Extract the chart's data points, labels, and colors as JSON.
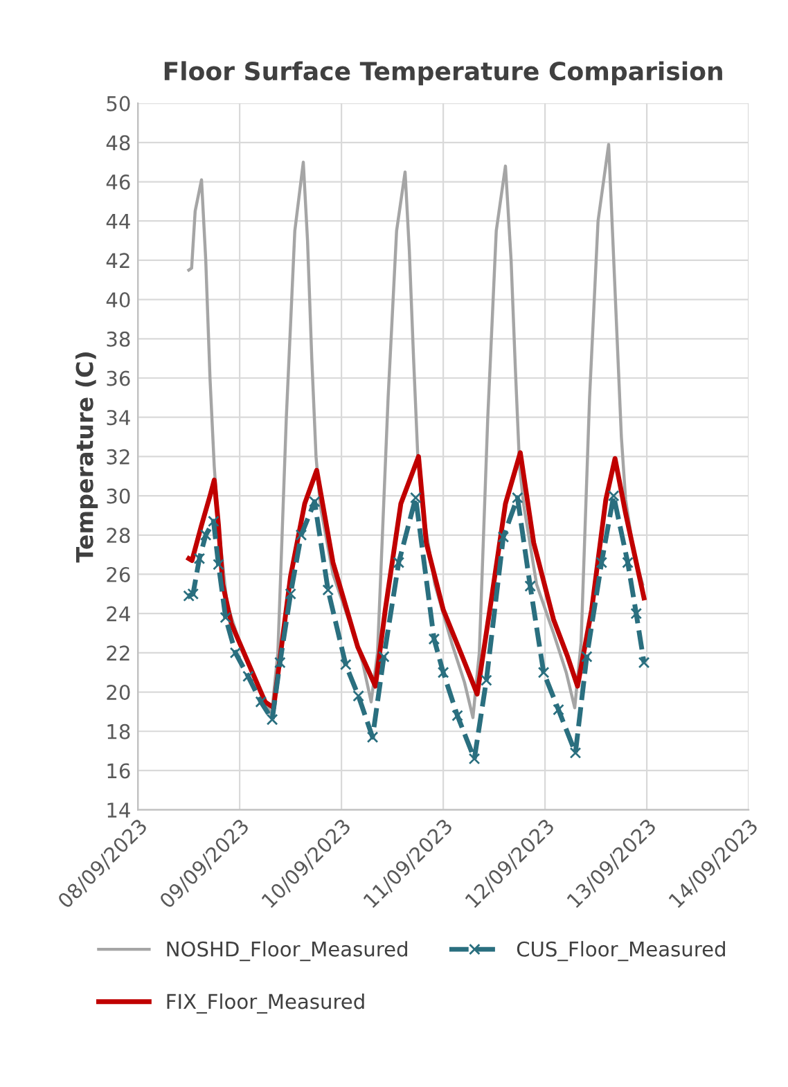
{
  "chart_data": {
    "type": "line",
    "title": "Floor Surface Temperature Comparision",
    "ylabel": "Temperature (C)",
    "xlim": [
      "2023-09-08",
      "2023-09-14"
    ],
    "xticks": [
      {
        "value": "2023-09-08",
        "label": "08/09/2023"
      },
      {
        "value": "2023-09-09",
        "label": "09/09/2023"
      },
      {
        "value": "2023-09-10",
        "label": "10/09/2023"
      },
      {
        "value": "2023-09-11",
        "label": "11/09/2023"
      },
      {
        "value": "2023-09-12",
        "label": "12/09/2023"
      },
      {
        "value": "2023-09-13",
        "label": "13/09/2023"
      },
      {
        "value": "2023-09-14",
        "label": "14/09/2023"
      }
    ],
    "ylim": [
      14,
      50
    ],
    "yticks": [
      14,
      16,
      18,
      20,
      22,
      24,
      26,
      28,
      30,
      32,
      34,
      36,
      38,
      40,
      42,
      44,
      46,
      48,
      50
    ],
    "grid": true,
    "legend": "bottom",
    "series": [
      {
        "name": "NOSHD_Floor_Measured",
        "color": "#a5a5a5",
        "marker": "none",
        "line_style": "solid",
        "x": [
          "2023-09-08T12:00",
          "2023-09-08T12:40",
          "2023-09-08T13:30",
          "2023-09-08T15:00",
          "2023-09-08T16:00",
          "2023-09-08T17:00",
          "2023-09-08T18:00",
          "2023-09-08T19:00",
          "2023-09-08T21:00",
          "2023-09-09T00:00",
          "2023-09-09T04:00",
          "2023-09-09T07:30",
          "2023-09-09T09:00",
          "2023-09-09T11:00",
          "2023-09-09T13:00",
          "2023-09-09T15:00",
          "2023-09-09T16:00",
          "2023-09-09T17:00",
          "2023-09-09T18:00",
          "2023-09-09T19:00",
          "2023-09-09T22:00",
          "2023-09-10T02:00",
          "2023-09-10T05:00",
          "2023-09-10T07:00",
          "2023-09-10T08:30",
          "2023-09-10T11:00",
          "2023-09-10T13:00",
          "2023-09-10T15:00",
          "2023-09-10T16:00",
          "2023-09-10T17:00",
          "2023-09-10T18:00",
          "2023-09-10T19:00",
          "2023-09-10T22:00",
          "2023-09-11T02:00",
          "2023-09-11T05:00",
          "2023-09-11T07:00",
          "2023-09-11T08:30",
          "2023-09-11T10:30",
          "2023-09-11T12:30",
          "2023-09-11T14:40",
          "2023-09-11T16:00",
          "2023-09-11T17:00",
          "2023-09-11T18:00",
          "2023-09-11T19:00",
          "2023-09-11T22:00",
          "2023-09-12T02:00",
          "2023-09-12T05:00",
          "2023-09-12T07:00",
          "2023-09-12T08:30",
          "2023-09-12T10:30",
          "2023-09-12T12:30",
          "2023-09-12T15:00",
          "2023-09-12T16:00",
          "2023-09-12T17:00",
          "2023-09-12T18:00",
          "2023-09-12T19:00",
          "2023-09-12T21:00",
          "2023-09-12T23:00"
        ],
        "values": [
          41.5,
          41.6,
          44.5,
          46.1,
          42,
          36,
          31.5,
          28.5,
          24.5,
          22.5,
          20.5,
          18.8,
          22,
          34,
          43.5,
          47.0,
          43,
          37,
          32,
          29.5,
          26,
          23.5,
          21.5,
          19.5,
          22,
          35,
          43.5,
          46.5,
          42.5,
          37,
          32,
          29.5,
          25.5,
          22.5,
          20.5,
          18.7,
          22,
          34,
          43.5,
          46.8,
          42,
          36.5,
          31.5,
          29.5,
          25.5,
          23,
          21,
          19.2,
          22.5,
          35,
          44,
          47.9,
          43,
          38,
          33,
          29.8,
          27,
          25.5
        ]
      },
      {
        "name": "FIX_Floor_Measured",
        "color": "#c00000",
        "marker": "none",
        "line_style": "solid",
        "x": [
          "2023-09-08T12:00",
          "2023-09-08T12:45",
          "2023-09-08T15:00",
          "2023-09-08T17:00",
          "2023-09-08T18:00",
          "2023-09-08T19:00",
          "2023-09-08T20:00",
          "2023-09-08T22:00",
          "2023-09-09T02:00",
          "2023-09-09T06:00",
          "2023-09-09T08:00",
          "2023-09-09T12:00",
          "2023-09-09T15:20",
          "2023-09-09T18:10",
          "2023-09-09T22:00",
          "2023-09-10T03:50",
          "2023-09-10T08:00",
          "2023-09-10T10:20",
          "2023-09-10T14:00",
          "2023-09-10T18:10",
          "2023-09-10T20:00",
          "2023-09-11T00:00",
          "2023-09-11T04:30",
          "2023-09-11T08:00",
          "2023-09-11T11:20",
          "2023-09-11T14:40",
          "2023-09-11T18:10",
          "2023-09-11T21:20",
          "2023-09-12T02:00",
          "2023-09-12T05:20",
          "2023-09-12T07:40",
          "2023-09-12T11:00",
          "2023-09-12T14:20",
          "2023-09-12T16:30",
          "2023-09-12T19:00",
          "2023-09-12T23:20"
        ],
        "values": [
          26.8,
          26.7,
          28.5,
          30.0,
          30.8,
          28.5,
          25.5,
          23.5,
          21.5,
          19.5,
          19.2,
          25.9,
          29.6,
          31.3,
          26.6,
          22.3,
          20.3,
          24.2,
          29.6,
          32.0,
          27.6,
          24.2,
          21.8,
          19.9,
          24.7,
          29.6,
          32.2,
          27.6,
          23.7,
          21.8,
          20.3,
          24.2,
          29.8,
          31.9,
          29.1,
          24.8
        ]
      },
      {
        "name": "CUS_Floor_Measured",
        "color": "#2a6f7f",
        "marker": "cross",
        "line_style": "dashed",
        "x": [
          "2023-09-08T12:00",
          "2023-09-08T13:00",
          "2023-09-08T14:30",
          "2023-09-08T16:00",
          "2023-09-08T17:50",
          "2023-09-08T19:00",
          "2023-09-08T20:40",
          "2023-09-08T23:00",
          "2023-09-09T02:00",
          "2023-09-09T05:00",
          "2023-09-09T07:40",
          "2023-09-09T09:30",
          "2023-09-09T12:00",
          "2023-09-09T14:30",
          "2023-09-09T17:40",
          "2023-09-09T20:50",
          "2023-09-10T01:00",
          "2023-09-10T04:00",
          "2023-09-10T07:20",
          "2023-09-10T10:00",
          "2023-09-10T13:30",
          "2023-09-10T17:30",
          "2023-09-10T21:50",
          "2023-09-11T00:00",
          "2023-09-11T03:20",
          "2023-09-11T07:20",
          "2023-09-11T10:10",
          "2023-09-11T14:10",
          "2023-09-11T17:30",
          "2023-09-11T20:30",
          "2023-09-11T23:40",
          "2023-09-12T03:10",
          "2023-09-12T07:10",
          "2023-09-12T09:50",
          "2023-09-12T13:20",
          "2023-09-12T16:10",
          "2023-09-12T19:30",
          "2023-09-12T21:30",
          "2023-09-12T23:20"
        ],
        "values": [
          24.9,
          25.0,
          26.8,
          28.0,
          28.7,
          26.5,
          23.8,
          22.0,
          20.8,
          19.5,
          18.6,
          21.5,
          25.0,
          28.0,
          29.7,
          25.2,
          21.4,
          19.8,
          17.7,
          21.8,
          26.6,
          29.9,
          22.7,
          21.0,
          18.8,
          16.6,
          20.6,
          27.9,
          29.9,
          25.4,
          21.0,
          19.1,
          16.9,
          21.8,
          26.6,
          30.0,
          26.6,
          24.0,
          21.5
        ]
      }
    ]
  }
}
